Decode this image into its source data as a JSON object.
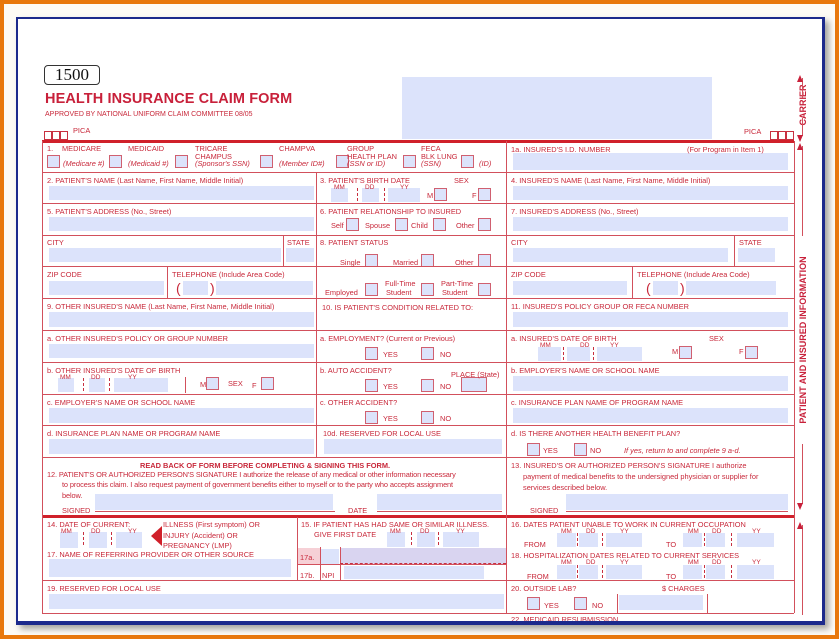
{
  "header": {
    "form_number": "1500",
    "title": "HEALTH INSURANCE CLAIM FORM",
    "approved": "APPROVED BY NATIONAL UNIFORM CLAIM COMMITTEE 08/05",
    "pica_left": "PICA",
    "pica_right": "PICA",
    "side_carrier": "CARRIER",
    "side_patient": "PATIENT AND INSURED INFORMATION"
  },
  "colors": {
    "ink": "#c8283a",
    "field_fill": "#dce3fb",
    "frame_outer": "#e8780c",
    "frame_inner": "#1c2a8c"
  },
  "f1": {
    "num": "1.",
    "medicare": "MEDICARE",
    "medicaid": "MEDICAID",
    "tricare": "TRICARE",
    "champus": "CHAMPUS",
    "champva": "CHAMPVA",
    "group": "GROUP",
    "health_plan": "HEALTH PLAN",
    "feca": "FECA",
    "blk_lung": "BLK LUNG",
    "medicare_id": "(Medicare #)",
    "medicaid_id": "(Medicaid #)",
    "sponsor": "(Sponsor's SSN)",
    "member": "(Member ID#)",
    "ssn_or_id": "(SSN or ID)",
    "ssn": "(SSN)",
    "id": "(ID)"
  },
  "f1a": {
    "label": "1a. INSURED'S I.D. NUMBER",
    "note": "(For Program in Item 1)"
  },
  "f2": "2. PATIENT'S NAME (Last Name, First Name, Middle Initial)",
  "f3": {
    "label": "3. PATIENT'S BIRTH DATE",
    "sex": "SEX",
    "m": "M",
    "f": "F"
  },
  "f4": "4. INSURED'S NAME (Last Name, First Name, Middle Initial)",
  "f5": "5. PATIENT'S ADDRESS (No., Street)",
  "f6": {
    "label": "6. PATIENT RELATIONSHIP TO INSURED",
    "self": "Self",
    "spouse": "Spouse",
    "child": "Child",
    "other": "Other"
  },
  "f7": "7. INSURED'S ADDRESS (No., Street)",
  "common": {
    "city": "CITY",
    "state": "STATE",
    "zip": "ZIP CODE",
    "telephone": "TELEPHONE (Include Area Code)",
    "paren_open": "(",
    "paren_close": ")",
    "mm": "MM",
    "dd": "DD",
    "yy": "YY",
    "yes": "YES",
    "no": "NO",
    "m": "M",
    "f": "F",
    "sex": "SEX",
    "from": "FROM",
    "to": "TO"
  },
  "f8": {
    "label": "8. PATIENT STATUS",
    "single": "Single",
    "married": "Married",
    "other": "Other",
    "employed": "Employed",
    "full_time": "Full-Time",
    "part_time": "Part-Time",
    "student": "Student"
  },
  "f9": {
    "label": "9. OTHER INSURED'S NAME (Last Name, First Name, Middle Initial)",
    "a": "a. OTHER INSURED'S POLICY OR GROUP NUMBER",
    "b": "b. OTHER INSURED'S DATE OF BIRTH",
    "c": "c. EMPLOYER'S NAME OR SCHOOL NAME",
    "d": "d. INSURANCE PLAN NAME OR PROGRAM NAME"
  },
  "f10": {
    "label": "10. IS PATIENT'S CONDITION RELATED TO:",
    "a": "a. EMPLOYMENT? (Current or Previous)",
    "b": "b. AUTO ACCIDENT?",
    "place": "PLACE (State)",
    "c": "c. OTHER ACCIDENT?",
    "d": "10d. RESERVED FOR LOCAL USE"
  },
  "f11": {
    "label": "11. INSURED'S POLICY GROUP OR FECA NUMBER",
    "a": "a. INSURED'S DATE OF BIRTH",
    "b": "b. EMPLOYER'S NAME OR SCHOOL NAME",
    "c": "c. INSURANCE PLAN NAME OF PROGRAM NAME",
    "d": "d. IS THERE ANOTHER HEALTH BENEFIT PLAN?",
    "d_note": "If yes, return to and complete 9 a-d."
  },
  "f12": {
    "read_back": "READ BACK OF FORM BEFORE COMPLETING & SIGNING THIS FORM.",
    "line1": "12. PATIENT'S OR AUTHORIZED PERSON'S SIGNATURE I authorize the release of any medical or other information necessary",
    "line2": "to process this claim. I also request payment of government benefits either to myself or to the party who accepts assignment",
    "line3": "below.",
    "signed": "SIGNED",
    "date": "DATE"
  },
  "f13": {
    "line1": "13. INSURED'S OR AUTHORIZED PERSON'S SIGNATURE I authorize",
    "line2": "payment of medical benefits to the undersigned physician or supplier for",
    "line3": "services described below.",
    "signed": "SIGNED"
  },
  "f14": {
    "label": "14. DATE OF CURRENT:",
    "illness": "ILLNESS (First symptom) OR",
    "injury": "INJURY (Accident) OR",
    "pregnancy": "PREGNANCY (LMP)"
  },
  "f15": {
    "line1": "15. IF PATIENT HAS HAD SAME OR SIMILAR ILLNESS.",
    "line2": "GIVE FIRST DATE"
  },
  "f16": "16. DATES PATIENT UNABLE TO WORK IN CURRENT OCCUPATION",
  "f17": {
    "label": "17. NAME OF REFERRING PROVIDER OR OTHER SOURCE",
    "a": "17a.",
    "b": "17b.",
    "npi": "NPI"
  },
  "f18": "18. HOSPITALIZATION DATES RELATED TO CURRENT SERVICES",
  "f19": "19. RESERVED FOR LOCAL USE",
  "f20": {
    "label": "20. OUTSIDE LAB?",
    "charges": "$ CHARGES"
  },
  "f22": "22. MEDICAID RESUBMISSION"
}
